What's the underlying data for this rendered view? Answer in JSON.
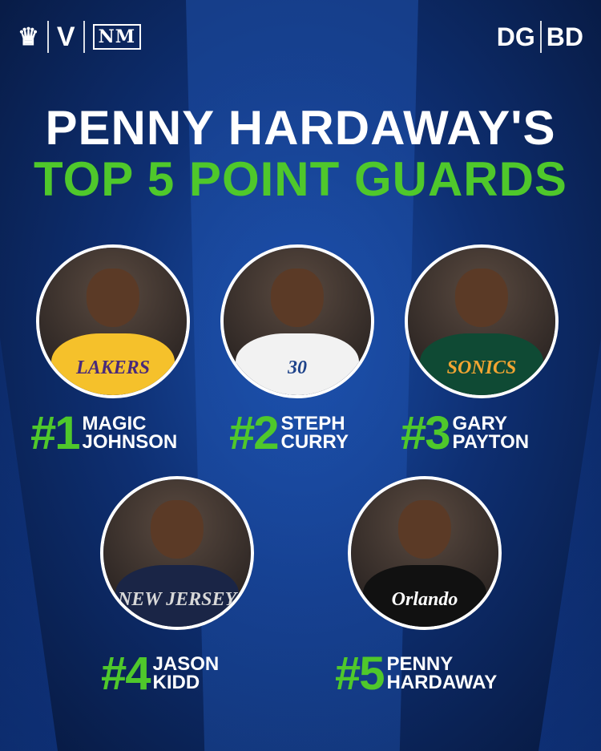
{
  "logos": {
    "left": [
      "DraftKings crown",
      "V",
      "NM"
    ],
    "left_nm_text": "NM",
    "right": [
      "DG",
      "BD"
    ]
  },
  "title": {
    "line1": "PENNY HARDAWAY'S",
    "line2": "TOP 5 POINT GUARDS"
  },
  "colors": {
    "accent_green": "#4fc82b",
    "background": "#0e2f72",
    "text": "#ffffff"
  },
  "players": [
    {
      "rank": "#1",
      "first": "MAGIC",
      "last": "JOHNSON",
      "jersey_text": "LAKERS",
      "jersey_color": "#f5c12b",
      "jersey_text_color": "#4a2a7a"
    },
    {
      "rank": "#2",
      "first": "STEPH",
      "last": "CURRY",
      "jersey_text": "30",
      "jersey_color": "#f2f2f2",
      "jersey_text_color": "#1d428a"
    },
    {
      "rank": "#3",
      "first": "GARY",
      "last": "PAYTON",
      "jersey_text": "SONICS",
      "jersey_color": "#0f4a34",
      "jersey_text_color": "#f2a532"
    },
    {
      "rank": "#4",
      "first": "JASON",
      "last": "KIDD",
      "jersey_text": "NEW JERSEY",
      "jersey_color": "#1a2546",
      "jersey_text_color": "#d8d8d8"
    },
    {
      "rank": "#5",
      "first": "PENNY",
      "last": "HARDAWAY",
      "jersey_text": "Orlando",
      "jersey_color": "#111111",
      "jersey_text_color": "#ffffff"
    }
  ]
}
